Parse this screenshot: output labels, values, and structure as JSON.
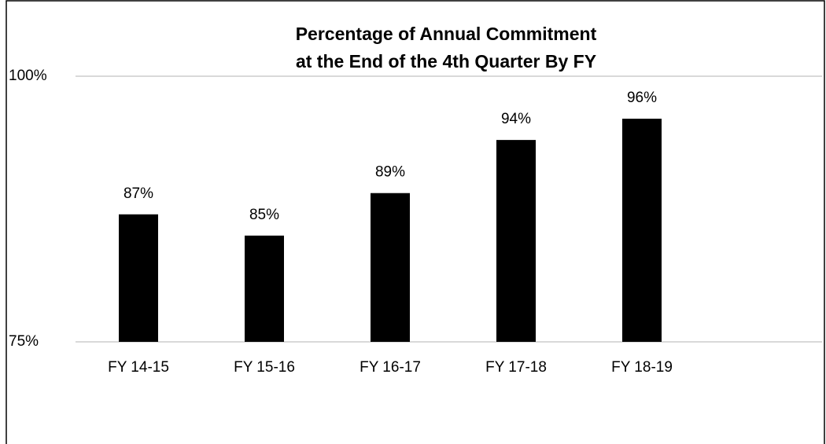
{
  "chart_data": {
    "type": "bar",
    "title": [
      "Percentage of Annual Commitment",
      "at the End of the 4th Quarter By FY"
    ],
    "categories": [
      "FY 14-15",
      "FY 15-16",
      "FY 16-17",
      "FY 17-18",
      "FY 18-19"
    ],
    "values": [
      87,
      85,
      89,
      94,
      96
    ],
    "value_labels": [
      "87%",
      "85%",
      "89%",
      "94%",
      "96%"
    ],
    "color": "#000000",
    "ylim": [
      75,
      100
    ],
    "yticks": [
      {
        "value": 75,
        "label": "75%"
      },
      {
        "value": 100,
        "label": "100%"
      }
    ],
    "grid": true
  }
}
